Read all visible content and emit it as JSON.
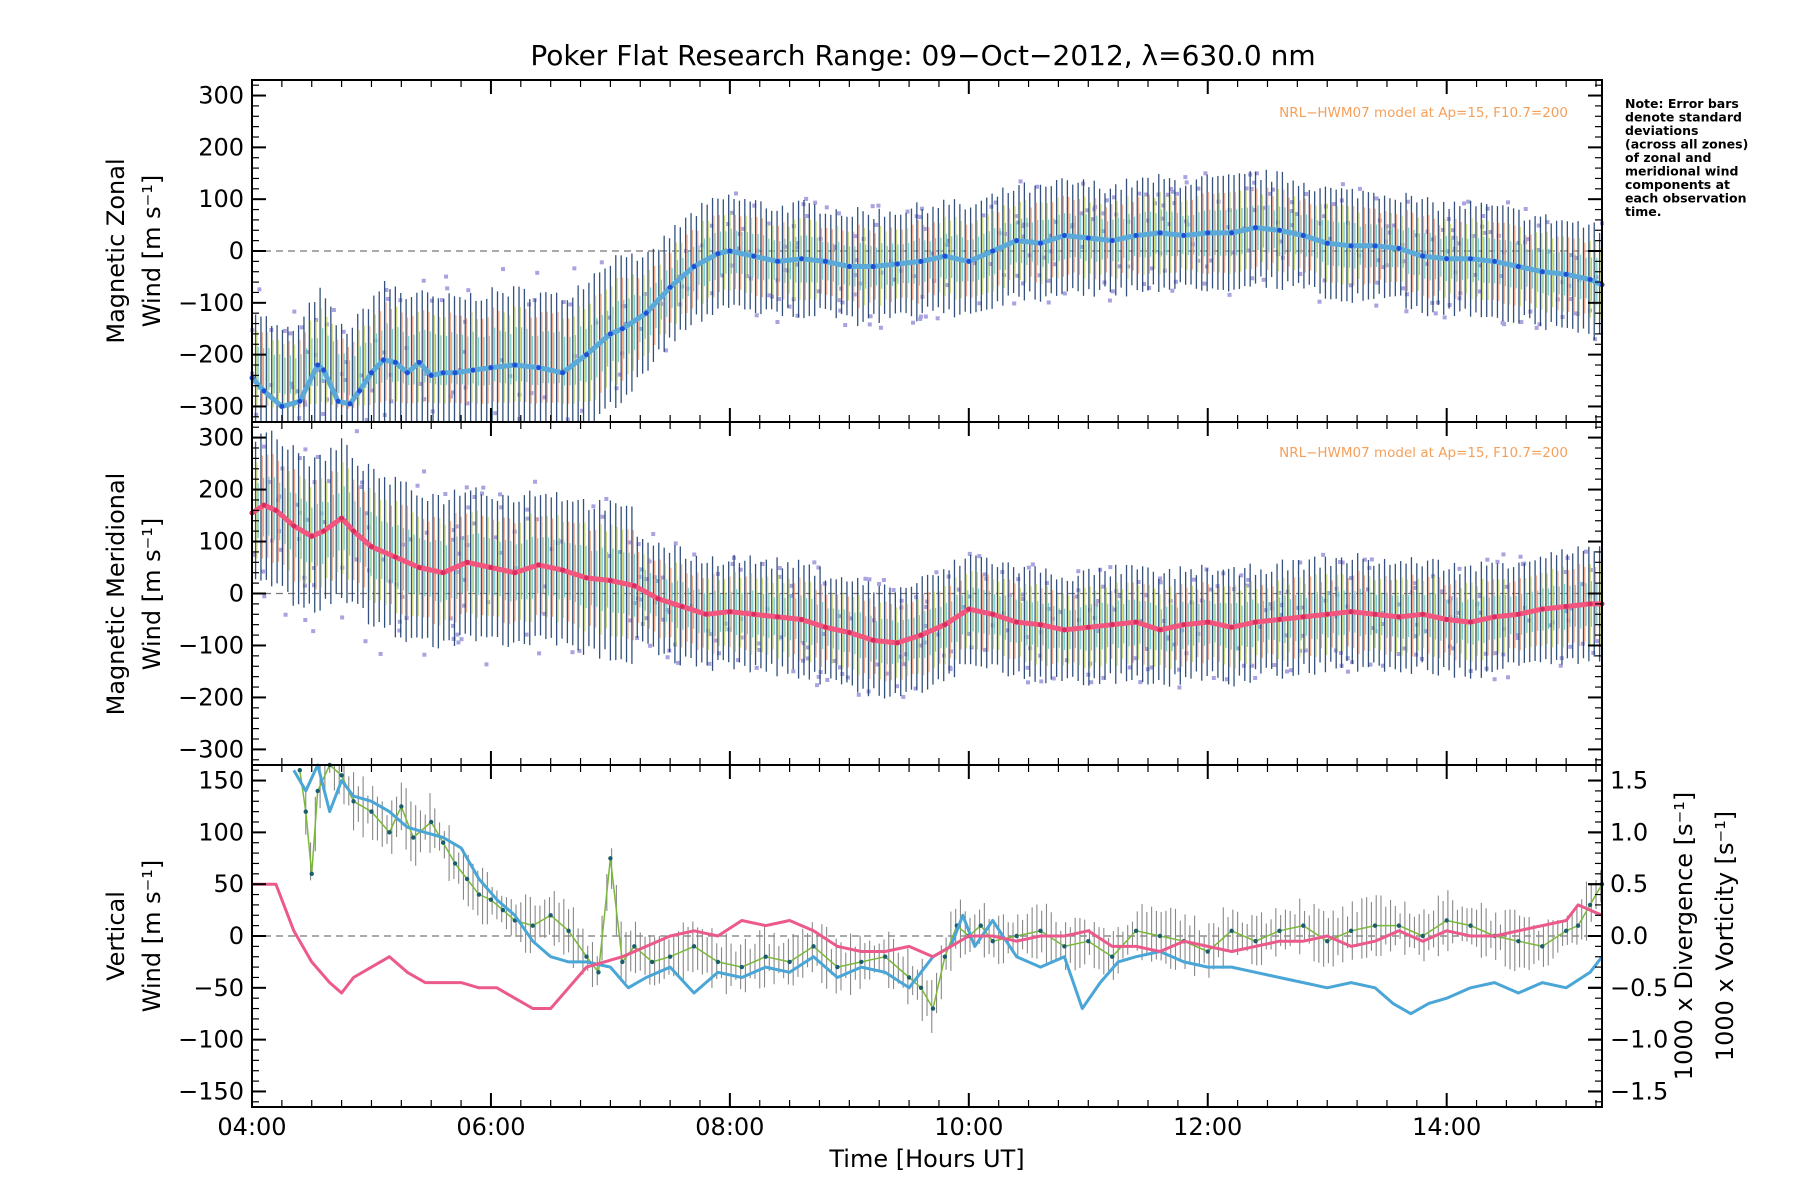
{
  "title": "Poker Flat Research Range: 09−Oct−2012, λ=630.0 nm",
  "note_lines": [
    "Note: Error bars",
    "denote standard",
    "deviations",
    "(across all zones)",
    "of zonal and",
    "meridional wind",
    "components at",
    "each observation",
    "time."
  ],
  "colors": {
    "zonal": "#5aa9d8",
    "zonal_dark": "#1f4fd6",
    "meridional": "#f2557d",
    "vertical": "#7ab83a",
    "divergence": "#49a6d6",
    "vorticity": "#ec5a8c",
    "scatter": "#a9a3e0",
    "model": "#f5a05a",
    "zero_line": "#777777"
  },
  "x_axis": {
    "label": "Time [Hours UT]",
    "ticks": [
      "04:00",
      "06:00",
      "08:00",
      "10:00",
      "12:00",
      "14:00"
    ],
    "tick_values": [
      4,
      6,
      8,
      10,
      12,
      14
    ],
    "range": [
      4.0,
      15.3
    ]
  },
  "chart_data": [
    {
      "type": "line",
      "panel": "zonal",
      "ylabel_lines": [
        "Magnetic Zonal",
        "Wind [m s⁻¹]"
      ],
      "ylim": [
        -330,
        330
      ],
      "y_ticks": [
        300,
        200,
        100,
        0,
        -100,
        -200,
        -300
      ],
      "model_label": "NRL−HWM07 model at Ap=15, F10.7=200",
      "series": [
        {
          "x": [
            4.0,
            4.1,
            4.25,
            4.4,
            4.55,
            4.6,
            4.72,
            4.82,
            4.9,
            5.0,
            5.1,
            5.2,
            5.3,
            5.4,
            5.5,
            5.6,
            5.7,
            5.85,
            6.0,
            6.2,
            6.4,
            6.6,
            6.8,
            7.0,
            7.1,
            7.3,
            7.5,
            7.7,
            7.9,
            8.0,
            8.2,
            8.4,
            8.6,
            8.8,
            9.0,
            9.2,
            9.4,
            9.6,
            9.8,
            10.0,
            10.2,
            10.4,
            10.6,
            10.8,
            11.0,
            11.2,
            11.4,
            11.6,
            11.8,
            12.0,
            12.2,
            12.4,
            12.6,
            12.8,
            13.0,
            13.2,
            13.4,
            13.6,
            13.8,
            14.0,
            14.2,
            14.4,
            14.6,
            14.8,
            15.0,
            15.2,
            15.3
          ],
          "values": [
            -245,
            -270,
            -300,
            -290,
            -220,
            -230,
            -290,
            -295,
            -270,
            -235,
            -210,
            -215,
            -235,
            -215,
            -240,
            -235,
            -235,
            -230,
            -225,
            -220,
            -225,
            -235,
            -200,
            -160,
            -150,
            -120,
            -70,
            -30,
            -5,
            0,
            -10,
            -20,
            -15,
            -20,
            -30,
            -30,
            -25,
            -20,
            -10,
            -20,
            0,
            20,
            15,
            30,
            25,
            20,
            30,
            35,
            30,
            35,
            35,
            45,
            40,
            30,
            15,
            10,
            10,
            5,
            -10,
            -15,
            -15,
            -20,
            -30,
            -40,
            -45,
            -55,
            -65
          ]
        }
      ]
    },
    {
      "type": "line",
      "panel": "meridional",
      "ylabel_lines": [
        "Magnetic Meridional",
        "Wind [m s⁻¹]"
      ],
      "ylim": [
        -330,
        330
      ],
      "y_ticks": [
        300,
        200,
        100,
        0,
        -100,
        -200,
        -300
      ],
      "model_label": "NRL−HWM07 model at Ap=15, F10.7=200",
      "series": [
        {
          "x": [
            4.0,
            4.1,
            4.2,
            4.35,
            4.5,
            4.6,
            4.75,
            4.85,
            5.0,
            5.2,
            5.4,
            5.6,
            5.8,
            6.0,
            6.2,
            6.4,
            6.6,
            6.8,
            7.0,
            7.2,
            7.4,
            7.6,
            7.8,
            8.0,
            8.2,
            8.4,
            8.6,
            8.8,
            9.0,
            9.2,
            9.4,
            9.6,
            9.8,
            10.0,
            10.2,
            10.4,
            10.6,
            10.8,
            11.0,
            11.2,
            11.4,
            11.6,
            11.8,
            12.0,
            12.2,
            12.4,
            12.6,
            12.8,
            13.0,
            13.2,
            13.4,
            13.6,
            13.8,
            14.0,
            14.2,
            14.4,
            14.6,
            14.8,
            15.0,
            15.2,
            15.3
          ],
          "values": [
            155,
            170,
            160,
            130,
            110,
            120,
            145,
            120,
            90,
            70,
            50,
            40,
            60,
            50,
            40,
            55,
            45,
            30,
            25,
            15,
            -10,
            -25,
            -40,
            -35,
            -40,
            -45,
            -50,
            -65,
            -75,
            -90,
            -95,
            -80,
            -60,
            -30,
            -40,
            -55,
            -60,
            -70,
            -65,
            -60,
            -55,
            -70,
            -60,
            -55,
            -65,
            -55,
            -50,
            -45,
            -40,
            -35,
            -40,
            -45,
            -40,
            -50,
            -55,
            -45,
            -40,
            -30,
            -25,
            -20,
            -20
          ]
        }
      ]
    },
    {
      "type": "line",
      "panel": "vertical",
      "ylabel_lines": [
        "Vertical",
        "Wind [m s⁻¹]"
      ],
      "ylim": [
        -165,
        165
      ],
      "y_ticks": [
        150,
        100,
        50,
        0,
        -50,
        -100,
        -150
      ],
      "y2": {
        "ylim": [
          -1.65,
          1.65
        ],
        "ticks": [
          "1.5",
          "1.0",
          "0.5",
          "0.0",
          "−0.5",
          "−1.0",
          "−1.5"
        ],
        "tick_values": [
          1.5,
          1.0,
          0.5,
          0.0,
          -0.5,
          -1.0,
          -1.5
        ],
        "label_divergence": "1000 x Divergence [s⁻¹]",
        "label_vorticity": "1000 x Vorticity [s⁻¹]"
      },
      "series": [
        {
          "name": "Vertical Wind",
          "axis": "left",
          "x": [
            4.4,
            4.45,
            4.5,
            4.55,
            4.65,
            4.75,
            4.85,
            5.0,
            5.15,
            5.25,
            5.35,
            5.5,
            5.6,
            5.7,
            5.8,
            5.9,
            6.0,
            6.1,
            6.2,
            6.35,
            6.5,
            6.65,
            6.8,
            6.9,
            7.0,
            7.1,
            7.2,
            7.35,
            7.5,
            7.7,
            7.9,
            8.1,
            8.3,
            8.5,
            8.7,
            8.9,
            9.1,
            9.3,
            9.5,
            9.6,
            9.7,
            9.8,
            9.9,
            10.0,
            10.1,
            10.2,
            10.4,
            10.6,
            10.8,
            11.0,
            11.2,
            11.4,
            11.6,
            11.8,
            12.0,
            12.2,
            12.4,
            12.6,
            12.8,
            13.0,
            13.2,
            13.4,
            13.6,
            13.8,
            14.0,
            14.2,
            14.4,
            14.6,
            14.8,
            15.0,
            15.1,
            15.2,
            15.3
          ],
          "values": [
            160,
            120,
            60,
            140,
            175,
            155,
            130,
            120,
            100,
            125,
            95,
            110,
            90,
            70,
            55,
            40,
            35,
            25,
            15,
            10,
            20,
            5,
            -20,
            -35,
            75,
            -25,
            -10,
            -25,
            -20,
            -10,
            -25,
            -30,
            -20,
            -25,
            -10,
            -30,
            -25,
            -20,
            -40,
            -50,
            -70,
            -20,
            10,
            0,
            10,
            -5,
            0,
            5,
            -10,
            -5,
            -20,
            5,
            0,
            -5,
            -15,
            5,
            -5,
            5,
            10,
            -5,
            5,
            10,
            10,
            0,
            15,
            10,
            0,
            -5,
            -10,
            5,
            10,
            30,
            50
          ]
        },
        {
          "name": "1000 x Divergence",
          "axis": "right",
          "x": [
            4.35,
            4.45,
            4.55,
            4.65,
            4.75,
            4.85,
            5.0,
            5.15,
            5.3,
            5.45,
            5.6,
            5.75,
            5.9,
            6.05,
            6.2,
            6.35,
            6.5,
            6.65,
            6.8,
            7.0,
            7.15,
            7.3,
            7.5,
            7.7,
            7.9,
            8.1,
            8.3,
            8.5,
            8.7,
            8.9,
            9.1,
            9.3,
            9.5,
            9.7,
            9.85,
            9.95,
            10.05,
            10.2,
            10.4,
            10.6,
            10.8,
            10.95,
            11.1,
            11.25,
            11.4,
            11.6,
            11.8,
            12.0,
            12.2,
            12.4,
            12.6,
            12.8,
            13.0,
            13.2,
            13.4,
            13.55,
            13.7,
            13.85,
            14.0,
            14.2,
            14.4,
            14.6,
            14.8,
            15.0,
            15.2,
            15.3
          ],
          "values": [
            1.6,
            1.4,
            1.65,
            1.2,
            1.5,
            1.35,
            1.3,
            1.2,
            1.05,
            1.0,
            0.95,
            0.85,
            0.55,
            0.35,
            0.2,
            -0.05,
            -0.2,
            -0.25,
            -0.25,
            -0.3,
            -0.5,
            -0.4,
            -0.3,
            -0.55,
            -0.35,
            -0.4,
            -0.3,
            -0.35,
            -0.2,
            -0.4,
            -0.3,
            -0.35,
            -0.5,
            -0.2,
            -0.1,
            0.2,
            -0.1,
            0.15,
            -0.2,
            -0.3,
            -0.2,
            -0.7,
            -0.45,
            -0.25,
            -0.2,
            -0.15,
            -0.25,
            -0.3,
            -0.3,
            -0.35,
            -0.4,
            -0.45,
            -0.5,
            -0.45,
            -0.5,
            -0.65,
            -0.75,
            -0.65,
            -0.6,
            -0.5,
            -0.45,
            -0.55,
            -0.45,
            -0.5,
            -0.35,
            -0.2
          ]
        },
        {
          "name": "1000 x Vorticity",
          "axis": "right",
          "x": [
            4.0,
            4.1,
            4.2,
            4.35,
            4.5,
            4.65,
            4.75,
            4.85,
            5.0,
            5.15,
            5.3,
            5.45,
            5.6,
            5.75,
            5.9,
            6.05,
            6.2,
            6.35,
            6.5,
            6.65,
            6.8,
            6.95,
            7.1,
            7.3,
            7.5,
            7.7,
            7.9,
            8.1,
            8.3,
            8.5,
            8.7,
            8.9,
            9.1,
            9.3,
            9.5,
            9.7,
            9.85,
            10.0,
            10.2,
            10.4,
            10.6,
            10.8,
            11.0,
            11.2,
            11.4,
            11.6,
            11.8,
            12.0,
            12.2,
            12.4,
            12.6,
            12.8,
            13.0,
            13.2,
            13.4,
            13.6,
            13.8,
            14.0,
            14.2,
            14.4,
            14.6,
            14.8,
            15.0,
            15.1,
            15.2,
            15.3
          ],
          "values": [
            0.5,
            0.5,
            0.5,
            0.05,
            -0.25,
            -0.45,
            -0.55,
            -0.4,
            -0.3,
            -0.2,
            -0.35,
            -0.45,
            -0.45,
            -0.45,
            -0.5,
            -0.5,
            -0.6,
            -0.7,
            -0.7,
            -0.5,
            -0.3,
            -0.25,
            -0.2,
            -0.1,
            0.0,
            0.05,
            0.0,
            0.15,
            0.1,
            0.15,
            0.05,
            -0.1,
            -0.15,
            -0.15,
            -0.1,
            -0.2,
            -0.1,
            0.0,
            0.0,
            -0.05,
            0.0,
            0.0,
            0.05,
            -0.1,
            -0.1,
            -0.15,
            -0.05,
            -0.1,
            -0.15,
            -0.1,
            -0.05,
            -0.05,
            0.0,
            -0.1,
            -0.05,
            0.05,
            -0.05,
            0.05,
            0.0,
            0.0,
            0.05,
            0.1,
            0.15,
            0.3,
            0.25,
            0.2
          ]
        }
      ]
    }
  ]
}
